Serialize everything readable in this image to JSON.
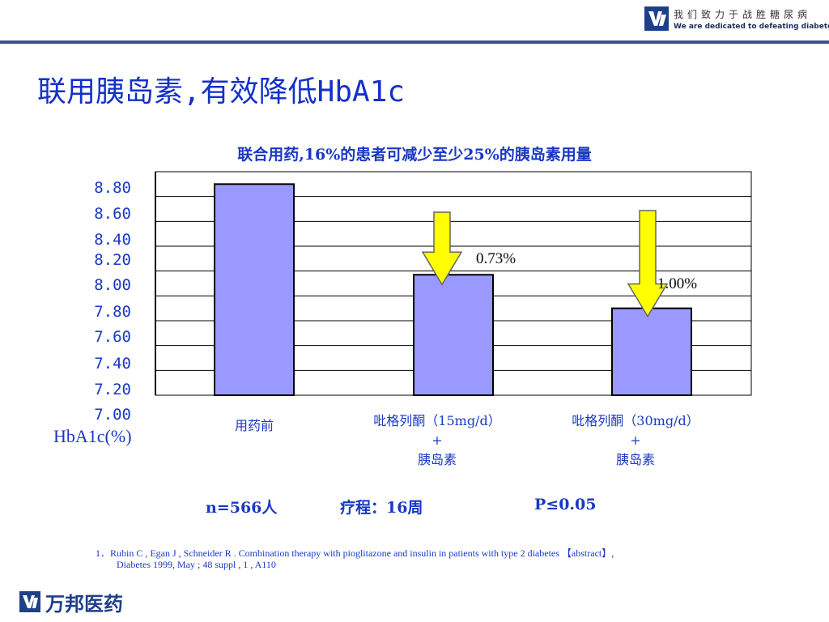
{
  "header": {
    "slogan_cn": "我们致力于战胜糖尿病",
    "slogan_en": "We are dedicated to defeating diabetes"
  },
  "title": "联用胰岛素,有效降低HbA1c",
  "chart_data": {
    "type": "bar",
    "title": "联合用药,16%的患者可减少至少25%的胰岛素用量",
    "ylabel": "HbA1c(%)",
    "ylim": [
      7.0,
      8.8
    ],
    "yticks": [
      "8.80",
      "8.60",
      "8.40",
      "8.20",
      "8.00",
      "7.80",
      "7.60",
      "7.40",
      "7.20",
      "7.00"
    ],
    "grid": true,
    "categories": [
      [
        "用药前"
      ],
      [
        "吡格列酮（15mg/d）",
        "+",
        "胰岛素"
      ],
      [
        "吡格列酮（30mg/d）",
        "+",
        "胰岛素"
      ]
    ],
    "values": [
      8.7,
      7.97,
      7.7
    ],
    "annotations": [
      "0.73%",
      "1.00%"
    ],
    "colors": {
      "bar": "#9999ff",
      "arrow": "#ffff00",
      "grid": "#000000",
      "text": "#1a38c4"
    }
  },
  "footer": {
    "n": "n=566人",
    "course": "疗程：16周",
    "p": "P≤0.05",
    "ref_line1": "1．Rubin C , Egan J , Schneider R . Combination therapy with pioglitazone and insulin in patients with type 2  diabetes 【abstract】,",
    "ref_line2": "Diabetes 1999, May ; 48 suppl , 1 , A110",
    "brand": "万邦医药"
  }
}
